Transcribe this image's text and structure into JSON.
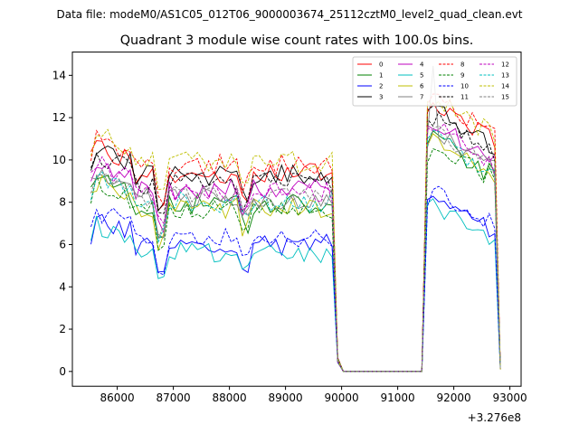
{
  "chart_data": {
    "type": "line",
    "suptitle": "Data file: modeM0/AS1C05_012T06_9000003674_25112cztM0_level2_quad_clean.evt",
    "title": "Quadrant 3 module wise count rates with 100.0s bins.",
    "xlabel": "",
    "ylabel": "",
    "x_offset_label": "+3.276e8",
    "xlim": [
      85200,
      93200
    ],
    "ylim": [
      -0.7,
      15.1
    ],
    "x_ticks": [
      86000,
      87000,
      88000,
      89000,
      90000,
      91000,
      92000,
      93000
    ],
    "y_ticks": [
      0,
      2,
      4,
      6,
      8,
      10,
      12,
      14
    ],
    "x_tick_labels": [
      "86000",
      "87000",
      "88000",
      "89000",
      "90000",
      "91000",
      "92000",
      "93000"
    ],
    "y_tick_labels": [
      "0",
      "2",
      "4",
      "6",
      "8",
      "10",
      "12",
      "14"
    ],
    "x_start": 85530,
    "bin_width": 100,
    "legend_location": "top-right",
    "legend_columns": 4,
    "series": [
      {
        "name": "0",
        "color": "#ff0000",
        "dash": "solid",
        "level": 9.4,
        "seed": 1
      },
      {
        "name": "1",
        "color": "#008000",
        "dash": "solid",
        "level": 7.9,
        "seed": 2
      },
      {
        "name": "2",
        "color": "#0000ff",
        "dash": "solid",
        "level": 6.0,
        "seed": 3
      },
      {
        "name": "3",
        "color": "#000000",
        "dash": "solid",
        "level": 9.3,
        "seed": 4
      },
      {
        "name": "4",
        "color": "#bf00bf",
        "dash": "solid",
        "level": 8.6,
        "seed": 5
      },
      {
        "name": "5",
        "color": "#00bfbf",
        "dash": "solid",
        "level": 5.6,
        "seed": 6
      },
      {
        "name": "6",
        "color": "#bfbf00",
        "dash": "solid",
        "level": 7.7,
        "seed": 7
      },
      {
        "name": "7",
        "color": "#808080",
        "dash": "solid",
        "level": 8.2,
        "seed": 8
      },
      {
        "name": "8",
        "color": "#ff0000",
        "dash": "dashed",
        "level": 9.8,
        "seed": 9
      },
      {
        "name": "9",
        "color": "#008000",
        "dash": "dashed",
        "level": 7.6,
        "seed": 10
      },
      {
        "name": "10",
        "color": "#0000ff",
        "dash": "dashed",
        "level": 6.3,
        "seed": 11
      },
      {
        "name": "11",
        "color": "#000000",
        "dash": "dashed",
        "level": 8.9,
        "seed": 12
      },
      {
        "name": "12",
        "color": "#bf00bf",
        "dash": "dashed",
        "level": 8.5,
        "seed": 13
      },
      {
        "name": "13",
        "color": "#00bfbf",
        "dash": "dashed",
        "level": 8.0,
        "seed": 14
      },
      {
        "name": "14",
        "color": "#bfbf00",
        "dash": "dashed",
        "level": 9.9,
        "seed": 15
      },
      {
        "name": "15",
        "color": "#808080",
        "dash": "dashed",
        "level": 8.3,
        "seed": 16
      }
    ]
  }
}
